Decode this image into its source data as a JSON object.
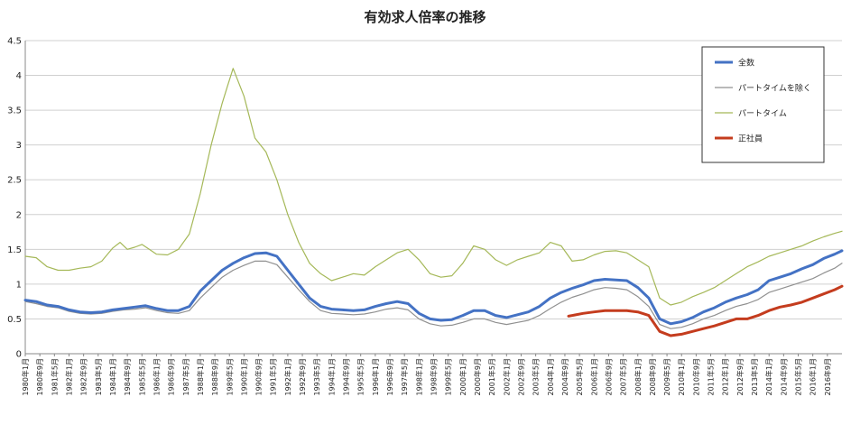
{
  "chart_data": {
    "type": "line",
    "title": "有効求人倍率の推移",
    "xlabel": "",
    "ylabel": "",
    "ylim": [
      0,
      4.5
    ],
    "yticks": [
      "0",
      "0.5",
      "1",
      "1.5",
      "2",
      "2.5",
      "3",
      "3.5",
      "4",
      "4.5"
    ],
    "grid": true,
    "legend_position": "top-right",
    "x_range": [
      "1980-01",
      "2017-05"
    ],
    "x_tick_labels": [
      "1980年1月",
      "1980年9月",
      "1981年5月",
      "1982年1月",
      "1982年9月",
      "1983年5月",
      "1984年1月",
      "1984年9月",
      "1985年5月",
      "1986年1月",
      "1986年9月",
      "1987年5月",
      "1988年1月",
      "1988年9月",
      "1989年5月",
      "1990年1月",
      "1990年9月",
      "1991年5月",
      "1992年1月",
      "1992年9月",
      "1993年5月",
      "1994年1月",
      "1994年9月",
      "1995年5月",
      "1996年1月",
      "1996年9月",
      "1997年5月",
      "1998年1月",
      "1998年9月",
      "1999年5月",
      "2000年1月",
      "2000年9月",
      "2001年5月",
      "2002年1月",
      "2002年9月",
      "2003年5月",
      "2004年1月",
      "2004年9月",
      "2005年5月",
      "2006年1月",
      "2006年9月",
      "2007年5月",
      "2008年1月",
      "2008年9月",
      "2009年5月",
      "2010年1月",
      "2010年9月",
      "2011年5月",
      "2012年1月",
      "2012年9月",
      "2013年5月",
      "2014年1月",
      "2014年9月",
      "2015年5月",
      "2016年1月",
      "2016年9月"
    ],
    "series": [
      {
        "name": "全数",
        "color": "#4472c4",
        "x": [
          "1980-01",
          "1980-07",
          "1981-01",
          "1981-07",
          "1982-01",
          "1982-07",
          "1983-01",
          "1983-07",
          "1984-01",
          "1984-07",
          "1985-01",
          "1985-07",
          "1986-01",
          "1986-07",
          "1987-01",
          "1987-07",
          "1988-01",
          "1988-07",
          "1989-01",
          "1989-07",
          "1990-01",
          "1990-07",
          "1991-01",
          "1991-07",
          "1992-01",
          "1992-07",
          "1993-01",
          "1993-07",
          "1994-01",
          "1994-07",
          "1995-01",
          "1995-07",
          "1996-01",
          "1996-07",
          "1997-01",
          "1997-07",
          "1998-01",
          "1998-07",
          "1999-01",
          "1999-07",
          "2000-01",
          "2000-07",
          "2001-01",
          "2001-07",
          "2002-01",
          "2002-07",
          "2003-01",
          "2003-07",
          "2004-01",
          "2004-07",
          "2005-01",
          "2005-07",
          "2006-01",
          "2006-07",
          "2007-01",
          "2007-07",
          "2008-01",
          "2008-07",
          "2009-01",
          "2009-07",
          "2010-01",
          "2010-07",
          "2011-01",
          "2011-07",
          "2012-01",
          "2012-07",
          "2013-01",
          "2013-07",
          "2014-01",
          "2014-07",
          "2015-01",
          "2015-07",
          "2016-01",
          "2016-07",
          "2017-01",
          "2017-05"
        ],
        "values": [
          0.77,
          0.75,
          0.7,
          0.68,
          0.63,
          0.6,
          0.59,
          0.6,
          0.63,
          0.65,
          0.67,
          0.69,
          0.65,
          0.62,
          0.62,
          0.68,
          0.9,
          1.05,
          1.2,
          1.3,
          1.38,
          1.44,
          1.45,
          1.4,
          1.2,
          1.0,
          0.8,
          0.68,
          0.64,
          0.63,
          0.62,
          0.63,
          0.68,
          0.72,
          0.75,
          0.72,
          0.58,
          0.5,
          0.48,
          0.49,
          0.55,
          0.62,
          0.62,
          0.55,
          0.52,
          0.56,
          0.6,
          0.68,
          0.8,
          0.88,
          0.94,
          0.99,
          1.05,
          1.07,
          1.06,
          1.05,
          0.95,
          0.8,
          0.5,
          0.43,
          0.46,
          0.52,
          0.6,
          0.66,
          0.74,
          0.8,
          0.85,
          0.92,
          1.05,
          1.1,
          1.15,
          1.22,
          1.28,
          1.37,
          1.43,
          1.48
        ]
      },
      {
        "name": "パートタイムを除く",
        "color": "#909090",
        "x": [
          "1980-01",
          "1980-07",
          "1981-01",
          "1981-07",
          "1982-01",
          "1982-07",
          "1983-01",
          "1983-07",
          "1984-01",
          "1984-07",
          "1985-01",
          "1985-07",
          "1986-01",
          "1986-07",
          "1987-01",
          "1987-07",
          "1988-01",
          "1988-07",
          "1989-01",
          "1989-07",
          "1990-01",
          "1990-07",
          "1991-01",
          "1991-07",
          "1992-01",
          "1992-07",
          "1993-01",
          "1993-07",
          "1994-01",
          "1994-07",
          "1995-01",
          "1995-07",
          "1996-01",
          "1996-07",
          "1997-01",
          "1997-07",
          "1998-01",
          "1998-07",
          "1999-01",
          "1999-07",
          "2000-01",
          "2000-07",
          "2001-01",
          "2001-07",
          "2002-01",
          "2002-07",
          "2003-01",
          "2003-07",
          "2004-01",
          "2004-07",
          "2005-01",
          "2005-07",
          "2006-01",
          "2006-07",
          "2007-01",
          "2007-07",
          "2008-01",
          "2008-07",
          "2009-01",
          "2009-07",
          "2010-01",
          "2010-07",
          "2011-01",
          "2011-07",
          "2012-01",
          "2012-07",
          "2013-01",
          "2013-07",
          "2014-01",
          "2014-07",
          "2015-01",
          "2015-07",
          "2016-01",
          "2016-07",
          "2017-01",
          "2017-05"
        ],
        "values": [
          0.75,
          0.72,
          0.68,
          0.66,
          0.61,
          0.58,
          0.57,
          0.58,
          0.61,
          0.63,
          0.64,
          0.66,
          0.62,
          0.59,
          0.58,
          0.62,
          0.8,
          0.95,
          1.1,
          1.2,
          1.27,
          1.33,
          1.33,
          1.28,
          1.1,
          0.92,
          0.75,
          0.62,
          0.58,
          0.57,
          0.56,
          0.57,
          0.6,
          0.64,
          0.66,
          0.63,
          0.5,
          0.43,
          0.4,
          0.41,
          0.45,
          0.5,
          0.5,
          0.45,
          0.42,
          0.45,
          0.48,
          0.55,
          0.65,
          0.74,
          0.81,
          0.86,
          0.92,
          0.95,
          0.94,
          0.92,
          0.82,
          0.68,
          0.42,
          0.36,
          0.38,
          0.43,
          0.5,
          0.55,
          0.62,
          0.68,
          0.72,
          0.78,
          0.88,
          0.93,
          0.98,
          1.03,
          1.08,
          1.16,
          1.23,
          1.3
        ]
      },
      {
        "name": "パートタイム",
        "color": "#a5b858",
        "x": [
          "1980-01",
          "1980-07",
          "1981-01",
          "1981-07",
          "1982-01",
          "1982-07",
          "1983-01",
          "1983-07",
          "1984-01",
          "1984-05",
          "1984-09",
          "1985-01",
          "1985-05",
          "1985-09",
          "1986-01",
          "1986-07",
          "1987-01",
          "1987-07",
          "1988-01",
          "1988-07",
          "1989-01",
          "1989-04",
          "1989-07",
          "1990-01",
          "1990-07",
          "1991-01",
          "1991-07",
          "1992-01",
          "1992-07",
          "1993-01",
          "1993-07",
          "1994-01",
          "1994-07",
          "1995-01",
          "1995-07",
          "1996-01",
          "1996-07",
          "1997-01",
          "1997-07",
          "1998-01",
          "1998-07",
          "1999-01",
          "1999-07",
          "2000-01",
          "2000-07",
          "2001-01",
          "2001-07",
          "2002-01",
          "2002-07",
          "2003-01",
          "2003-07",
          "2004-01",
          "2004-07",
          "2005-01",
          "2005-07",
          "2006-01",
          "2006-07",
          "2007-01",
          "2007-07",
          "2008-01",
          "2008-07",
          "2009-01",
          "2009-07",
          "2010-01",
          "2010-07",
          "2011-01",
          "2011-07",
          "2012-01",
          "2012-07",
          "2013-01",
          "2013-07",
          "2014-01",
          "2014-07",
          "2015-01",
          "2015-07",
          "2016-01",
          "2016-07",
          "2017-01",
          "2017-05"
        ],
        "values": [
          1.4,
          1.38,
          1.25,
          1.2,
          1.2,
          1.23,
          1.25,
          1.33,
          1.52,
          1.6,
          1.5,
          1.53,
          1.57,
          1.5,
          1.43,
          1.42,
          1.5,
          1.72,
          2.3,
          3.0,
          3.6,
          3.85,
          4.1,
          3.7,
          3.1,
          2.9,
          2.5,
          2.0,
          1.6,
          1.3,
          1.15,
          1.05,
          1.1,
          1.15,
          1.13,
          1.25,
          1.35,
          1.45,
          1.5,
          1.35,
          1.15,
          1.1,
          1.12,
          1.3,
          1.55,
          1.5,
          1.35,
          1.27,
          1.35,
          1.4,
          1.45,
          1.6,
          1.55,
          1.33,
          1.35,
          1.42,
          1.47,
          1.48,
          1.45,
          1.35,
          1.25,
          0.8,
          0.7,
          0.74,
          0.82,
          0.88,
          0.95,
          1.05,
          1.15,
          1.25,
          1.32,
          1.4,
          1.45,
          1.5,
          1.55,
          1.62,
          1.68,
          1.73,
          1.76
        ]
      },
      {
        "name": "正社員",
        "color": "#c43c1e",
        "x": [
          "2004-11",
          "2005-07",
          "2006-01",
          "2006-07",
          "2007-01",
          "2007-07",
          "2008-01",
          "2008-07",
          "2009-01",
          "2009-07",
          "2010-01",
          "2010-07",
          "2011-01",
          "2011-07",
          "2012-01",
          "2012-07",
          "2013-01",
          "2013-07",
          "2014-01",
          "2014-07",
          "2015-01",
          "2015-07",
          "2016-01",
          "2016-07",
          "2017-01",
          "2017-05"
        ],
        "values": [
          0.54,
          0.58,
          0.6,
          0.62,
          0.62,
          0.62,
          0.6,
          0.55,
          0.32,
          0.26,
          0.28,
          0.32,
          0.36,
          0.4,
          0.45,
          0.5,
          0.5,
          0.55,
          0.62,
          0.67,
          0.7,
          0.74,
          0.8,
          0.86,
          0.92,
          0.97
        ]
      }
    ]
  }
}
